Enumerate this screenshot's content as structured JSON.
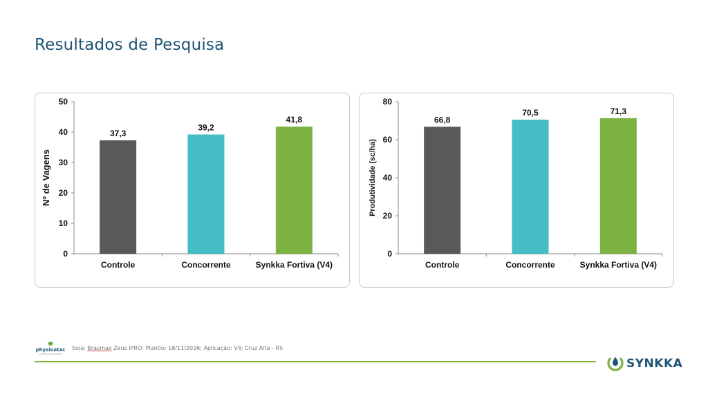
{
  "page": {
    "title": "Resultados de Pesquisa"
  },
  "footer": {
    "logo_text": "physioatac",
    "note_prefix": "Soja: ",
    "note_brand": "Brasmax",
    "note_rest": " Zeus IPRO; Plantio: 18/11/2026; Aplicação: V4; Cruz Alta - RS",
    "brand_name": "SYNKKA"
  },
  "colors": {
    "controle": "#595959",
    "concorrente": "#45bcc6",
    "synkka": "#7cb342",
    "title": "#1f5575",
    "accent_line": "#7cb342"
  },
  "chart_data": [
    {
      "type": "bar",
      "categories": [
        "Controle",
        "Concorrente",
        "Synkka Fortiva (V4)"
      ],
      "values": [
        37.3,
        39.2,
        41.8
      ],
      "value_labels": [
        "37,3",
        "39,2",
        "41,8"
      ],
      "ylabel": "Nº de Vagens",
      "xlabel": "",
      "ylim": [
        0,
        50
      ],
      "yticks": [
        0,
        10,
        20,
        30,
        40,
        50
      ],
      "grid": false,
      "bar_colors": [
        "#595959",
        "#45bcc6",
        "#7cb342"
      ]
    },
    {
      "type": "bar",
      "categories": [
        "Controle",
        "Concorrente",
        "Synkka Fortiva (V4)"
      ],
      "values": [
        66.8,
        70.5,
        71.3
      ],
      "value_labels": [
        "66,8",
        "70,5",
        "71,3"
      ],
      "ylabel": "Produtividade (sc/ha)",
      "xlabel": "",
      "ylim": [
        0,
        80
      ],
      "yticks": [
        0,
        20,
        40,
        60,
        80
      ],
      "grid": false,
      "bar_colors": [
        "#595959",
        "#45bcc6",
        "#7cb342"
      ]
    }
  ]
}
